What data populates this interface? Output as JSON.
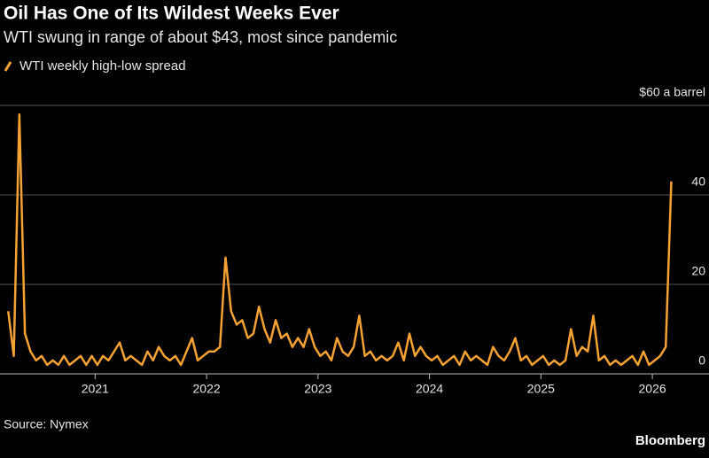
{
  "chart_data": {
    "type": "line",
    "title": "Oil Has One of Its Wildest Weeks Ever",
    "subtitle": "WTI swung in range of about $43, most since pandemic",
    "source": "Source: Nymex",
    "brand": "Bloomberg",
    "grid": true,
    "xlim": [
      2020.21,
      2026.19
    ],
    "xticks": [
      2021,
      2022,
      2023,
      2024,
      2025,
      2026
    ],
    "ylim": [
      0,
      60
    ],
    "yticks": [
      0,
      20,
      40,
      {
        "value": 60,
        "label": "$60 a barrel"
      }
    ],
    "x": [
      2020.22,
      2020.27,
      2020.32,
      2020.37,
      2020.42,
      2020.47,
      2020.52,
      2020.57,
      2020.62,
      2020.67,
      2020.72,
      2020.77,
      2020.82,
      2020.87,
      2020.92,
      2020.97,
      2021.02,
      2021.07,
      2021.12,
      2021.17,
      2021.22,
      2021.27,
      2021.32,
      2021.37,
      2021.42,
      2021.47,
      2021.52,
      2021.57,
      2021.62,
      2021.67,
      2021.72,
      2021.77,
      2021.82,
      2021.87,
      2021.92,
      2021.97,
      2022.02,
      2022.07,
      2022.12,
      2022.17,
      2022.22,
      2022.27,
      2022.32,
      2022.37,
      2022.42,
      2022.47,
      2022.52,
      2022.57,
      2022.62,
      2022.67,
      2022.72,
      2022.77,
      2022.82,
      2022.87,
      2022.92,
      2022.97,
      2023.02,
      2023.07,
      2023.12,
      2023.17,
      2023.22,
      2023.27,
      2023.32,
      2023.37,
      2023.42,
      2023.47,
      2023.52,
      2023.57,
      2023.62,
      2023.67,
      2023.72,
      2023.77,
      2023.82,
      2023.87,
      2023.92,
      2023.97,
      2024.02,
      2024.07,
      2024.12,
      2024.17,
      2024.22,
      2024.27,
      2024.32,
      2024.37,
      2024.42,
      2024.47,
      2024.52,
      2024.57,
      2024.62,
      2024.67,
      2024.72,
      2024.77,
      2024.82,
      2024.87,
      2024.92,
      2024.97,
      2025.02,
      2025.07,
      2025.12,
      2025.17,
      2025.22,
      2025.27,
      2025.32,
      2025.37,
      2025.42,
      2025.47,
      2025.52,
      2025.57,
      2025.62,
      2025.67,
      2025.72,
      2025.77,
      2025.82,
      2025.87,
      2025.92,
      2025.97,
      2026.02,
      2026.07,
      2026.12,
      2026.17
    ],
    "series": [
      {
        "name": "WTI weekly high-low spread",
        "color": "#f5a233",
        "values": [
          14,
          4,
          58,
          9,
          5,
          3,
          4,
          2,
          3,
          2,
          4,
          2,
          3,
          4,
          2,
          4,
          2,
          4,
          3,
          5,
          7,
          3,
          4,
          3,
          2,
          5,
          3,
          6,
          4,
          3,
          4,
          2,
          5,
          8,
          3,
          4,
          5,
          5,
          6,
          26,
          14,
          11,
          12,
          8,
          9,
          15,
          10,
          7,
          12,
          8,
          9,
          6,
          8,
          6,
          10,
          6,
          4,
          5,
          3,
          8,
          5,
          4,
          6,
          13,
          4,
          5,
          3,
          4,
          3,
          4,
          7,
          3,
          9,
          4,
          6,
          4,
          3,
          4,
          2,
          3,
          4,
          2,
          5,
          3,
          4,
          3,
          2,
          6,
          4,
          3,
          5,
          8,
          3,
          4,
          2,
          3,
          4,
          2,
          3,
          2,
          3,
          10,
          4,
          6,
          5,
          13,
          3,
          4,
          2,
          3,
          2,
          3,
          4,
          2,
          5,
          2,
          3,
          4,
          6,
          43
        ]
      }
    ]
  }
}
